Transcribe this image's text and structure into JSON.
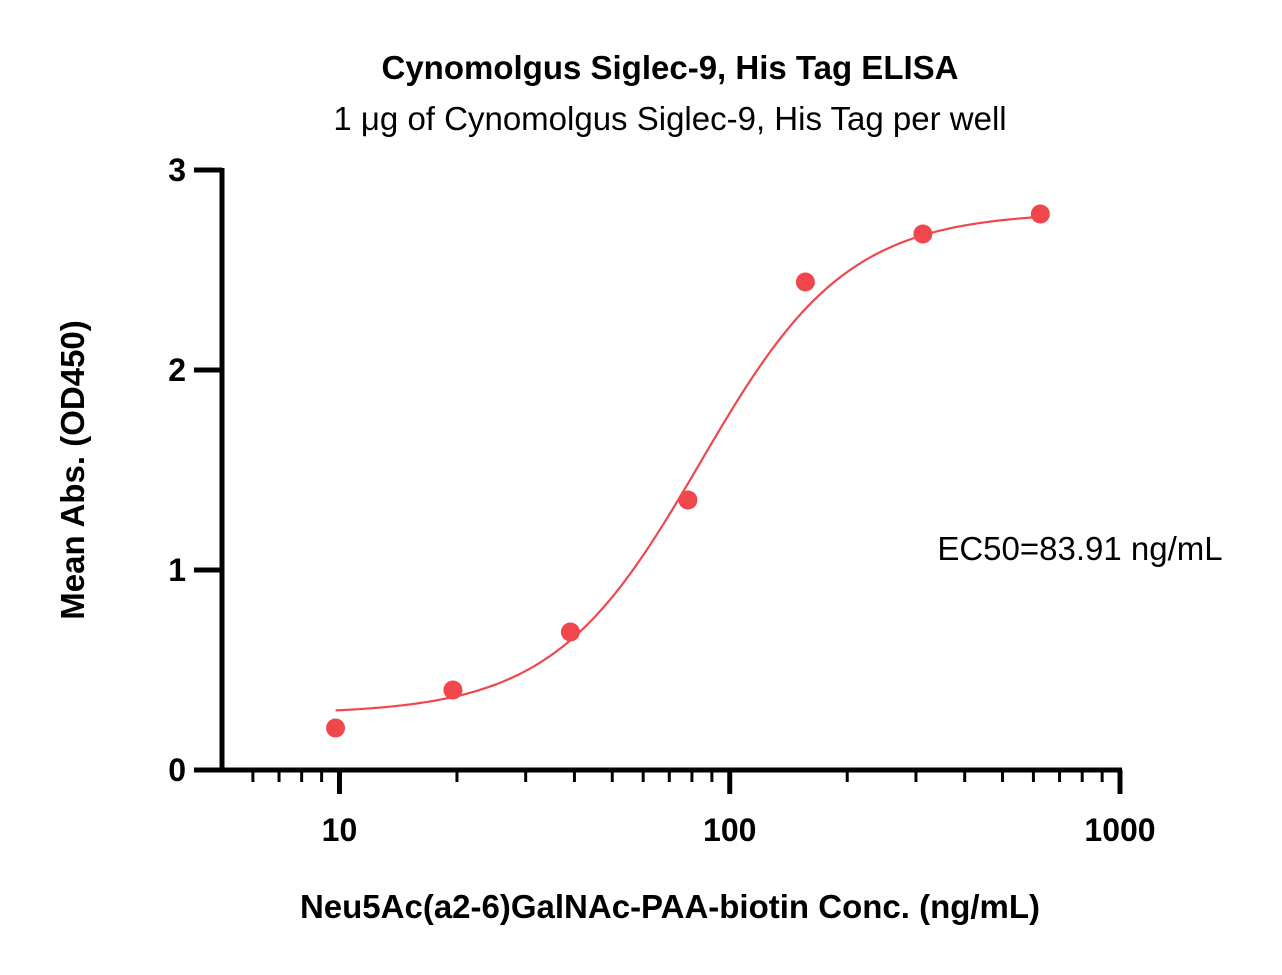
{
  "chart_data": {
    "type": "scatter",
    "title": "Cynomolgus Siglec-9, His Tag ELISA",
    "subtitle": "1 μg of Cynomolgus Siglec-9, His Tag per well",
    "xlabel": "Neu5Ac(a2-6)GalNAc-PAA-biotin Conc. (ng/mL)",
    "ylabel": "Mean Abs. (OD450)",
    "x_scale": "log",
    "xlim": [
      5,
      1000
    ],
    "ylim": [
      0,
      3
    ],
    "x_ticks": [
      10,
      100,
      1000
    ],
    "x_tick_labels": [
      "10",
      "100",
      "1000"
    ],
    "y_ticks": [
      0,
      1,
      2,
      3
    ],
    "y_tick_labels": [
      "0",
      "1",
      "2",
      "3"
    ],
    "grid": false,
    "color": "#f0474c",
    "series": [
      {
        "x": [
          9.77,
          19.53,
          39.06,
          78.13,
          156.25,
          312.5,
          625
        ],
        "y": [
          0.21,
          0.4,
          0.69,
          1.35,
          2.44,
          2.68,
          2.78
        ]
      }
    ],
    "fit_curve": {
      "model": "4PL",
      "bottom": 0.28,
      "top": 2.79,
      "ec50": 83.91,
      "hill": 2.3,
      "x_range": [
        9.77,
        625
      ]
    },
    "annotations": [
      {
        "text": "EC50=83.91 ng/mL"
      }
    ]
  }
}
